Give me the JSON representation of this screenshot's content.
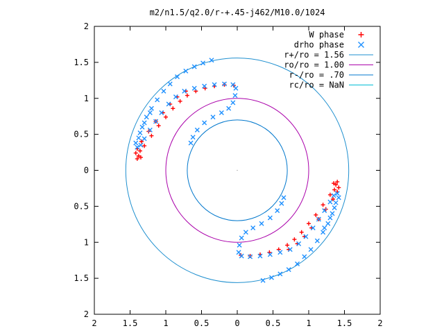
{
  "chart_data": {
    "type": "scatter",
    "title": "m2/n1.5/q2.0/r-+.45-j462/M10.0/1024",
    "xlim": [
      -2,
      2
    ],
    "ylim": [
      -2,
      2
    ],
    "x_ticks": [
      -2,
      -1.5,
      -1,
      -0.5,
      0,
      0.5,
      1,
      1.5,
      2
    ],
    "y_ticks": [
      -2,
      -1.5,
      -1,
      -0.5,
      0,
      0.5,
      1,
      1.5,
      2
    ],
    "x_tick_labels": [
      "2",
      "1.5",
      "1",
      "0.5",
      "0",
      "0.5",
      "1",
      "1.5",
      "2"
    ],
    "y_tick_labels": [
      "2",
      "1.5",
      "1",
      "0.5",
      "0",
      "0.5",
      "1",
      "1.5",
      "2"
    ],
    "grid": false,
    "legend_position": "top-right",
    "legend": [
      {
        "label": "W phase",
        "symbol": "+",
        "color": "#ff0000"
      },
      {
        "label": "drho phase",
        "symbol": "x",
        "color": "#1e90ff"
      },
      {
        "label": "r+/ro = 1.56",
        "symbol": "line",
        "color": "#1e8fcf"
      },
      {
        "label": "ro/ro = 1.00",
        "symbol": "line",
        "color": "#aa00aa"
      },
      {
        "label": "r-/ro = .70",
        "symbol": "line",
        "color": "#0077cc"
      },
      {
        "label": "rc/ro = NaN",
        "symbol": "line",
        "color": "#00bcd4"
      }
    ],
    "circles": [
      {
        "name": "r+/ro",
        "radius": 1.56,
        "color": "#1e8fcf"
      },
      {
        "name": "ro/ro",
        "radius": 1.0,
        "color": "#aa00aa"
      },
      {
        "name": "r-/ro",
        "radius": 0.7,
        "color": "#0077cc"
      }
    ],
    "series": [
      {
        "name": "W phase",
        "color": "#ff0000",
        "marker": "+",
        "points": [
          [
            1.36,
            -0.27
          ],
          [
            1.3,
            -0.34
          ],
          [
            1.2,
            -0.48
          ],
          [
            1.1,
            -0.62
          ],
          [
            1.0,
            -0.74
          ],
          [
            0.9,
            -0.86
          ],
          [
            0.8,
            -0.96
          ],
          [
            0.7,
            -1.04
          ],
          [
            0.58,
            -1.1
          ],
          [
            0.45,
            -1.14
          ],
          [
            0.32,
            -1.17
          ],
          [
            0.18,
            -1.19
          ],
          [
            0.05,
            -1.18
          ],
          [
            1.4,
            -0.3
          ],
          [
            1.34,
            -0.4
          ],
          [
            1.24,
            -0.54
          ],
          [
            1.14,
            -0.68
          ],
          [
            1.04,
            -0.8
          ],
          [
            0.94,
            -0.92
          ],
          [
            0.84,
            -1.02
          ],
          [
            0.72,
            -1.1
          ],
          [
            -1.36,
            0.27
          ],
          [
            -1.3,
            0.34
          ],
          [
            -1.2,
            0.48
          ],
          [
            -1.1,
            0.62
          ],
          [
            -1.0,
            0.74
          ],
          [
            -0.9,
            0.86
          ],
          [
            -0.8,
            0.96
          ],
          [
            -0.7,
            1.04
          ],
          [
            -0.58,
            1.1
          ],
          [
            -0.45,
            1.14
          ],
          [
            -0.32,
            1.17
          ],
          [
            -0.18,
            1.19
          ],
          [
            -0.05,
            1.18
          ],
          [
            -1.4,
            0.3
          ],
          [
            -1.34,
            0.4
          ],
          [
            -1.24,
            0.54
          ],
          [
            -1.14,
            0.68
          ],
          [
            -1.04,
            0.8
          ],
          [
            -0.94,
            0.92
          ],
          [
            -0.84,
            1.02
          ],
          [
            -0.72,
            1.1
          ],
          [
            -1.38,
            0.2
          ],
          [
            -1.42,
            0.24
          ],
          [
            -1.35,
            0.18
          ],
          [
            -1.4,
            0.16
          ],
          [
            1.38,
            -0.2
          ],
          [
            1.42,
            -0.24
          ],
          [
            1.35,
            -0.18
          ],
          [
            1.4,
            -0.16
          ]
        ]
      },
      {
        "name": "drho phase",
        "color": "#1e90ff",
        "marker": "x",
        "points": [
          [
            -1.35,
            0.35
          ],
          [
            -1.3,
            0.44
          ],
          [
            -1.22,
            0.56
          ],
          [
            -1.14,
            0.68
          ],
          [
            -1.06,
            0.8
          ],
          [
            -0.96,
            0.92
          ],
          [
            -0.86,
            1.02
          ],
          [
            -0.74,
            1.1
          ],
          [
            -0.6,
            1.14
          ],
          [
            -0.46,
            1.17
          ],
          [
            -0.32,
            1.19
          ],
          [
            -0.18,
            1.2
          ],
          [
            -0.06,
            1.19
          ],
          [
            -0.02,
            1.14
          ],
          [
            -0.03,
            1.04
          ],
          [
            -0.06,
            0.94
          ],
          [
            -0.12,
            0.86
          ],
          [
            -0.22,
            0.8
          ],
          [
            -0.34,
            0.74
          ],
          [
            -0.46,
            0.66
          ],
          [
            -0.56,
            0.56
          ],
          [
            -0.62,
            0.46
          ],
          [
            -0.65,
            0.38
          ],
          [
            -1.4,
            0.32
          ],
          [
            -1.38,
            0.45
          ],
          [
            -1.33,
            0.6
          ],
          [
            -1.27,
            0.74
          ],
          [
            -1.2,
            0.86
          ],
          [
            -1.12,
            0.98
          ],
          [
            -1.03,
            1.1
          ],
          [
            -0.94,
            1.2
          ],
          [
            -0.84,
            1.3
          ],
          [
            -0.72,
            1.38
          ],
          [
            -0.6,
            1.44
          ],
          [
            -0.48,
            1.49
          ],
          [
            -0.36,
            1.53
          ],
          [
            -1.42,
            0.38
          ],
          [
            -1.36,
            0.52
          ],
          [
            -1.3,
            0.66
          ],
          [
            -1.22,
            0.8
          ],
          [
            1.35,
            -0.35
          ],
          [
            1.3,
            -0.44
          ],
          [
            1.22,
            -0.56
          ],
          [
            1.14,
            -0.68
          ],
          [
            1.06,
            -0.8
          ],
          [
            0.96,
            -0.92
          ],
          [
            0.86,
            -1.02
          ],
          [
            0.74,
            -1.1
          ],
          [
            0.6,
            -1.14
          ],
          [
            0.46,
            -1.17
          ],
          [
            0.32,
            -1.19
          ],
          [
            0.18,
            -1.2
          ],
          [
            0.06,
            -1.19
          ],
          [
            0.02,
            -1.14
          ],
          [
            0.03,
            -1.04
          ],
          [
            0.06,
            -0.94
          ],
          [
            0.12,
            -0.86
          ],
          [
            0.22,
            -0.8
          ],
          [
            0.34,
            -0.74
          ],
          [
            0.46,
            -0.66
          ],
          [
            0.56,
            -0.56
          ],
          [
            0.62,
            -0.46
          ],
          [
            0.65,
            -0.38
          ],
          [
            1.4,
            -0.32
          ],
          [
            1.38,
            -0.45
          ],
          [
            1.33,
            -0.6
          ],
          [
            1.27,
            -0.74
          ],
          [
            1.2,
            -0.86
          ],
          [
            1.12,
            -0.98
          ],
          [
            1.03,
            -1.1
          ],
          [
            0.94,
            -1.2
          ],
          [
            0.84,
            -1.3
          ],
          [
            0.72,
            -1.38
          ],
          [
            0.6,
            -1.44
          ],
          [
            0.48,
            -1.49
          ],
          [
            0.36,
            -1.53
          ],
          [
            1.42,
            -0.38
          ],
          [
            1.36,
            -0.52
          ],
          [
            1.3,
            -0.66
          ],
          [
            1.22,
            -0.8
          ]
        ]
      }
    ]
  }
}
